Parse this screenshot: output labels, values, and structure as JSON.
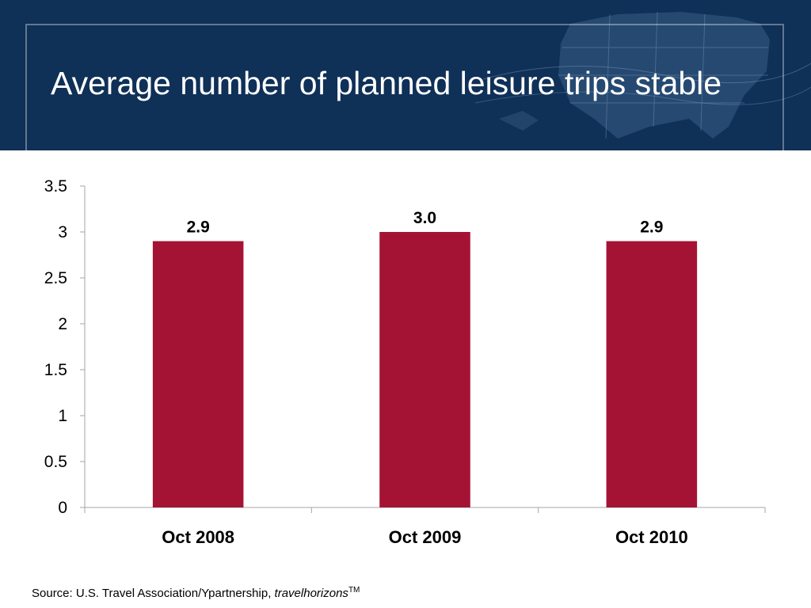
{
  "slide": {
    "title": "Average number of planned leisure trips stable",
    "source_prefix": "Source:  U.S. Travel Association/Ypartnership, ",
    "source_brand": "travelhorizons",
    "source_tm": "TM"
  },
  "colors": {
    "header_bg": "#0f3057",
    "bar": "#a51334"
  },
  "chart_data": {
    "type": "bar",
    "title": "",
    "xlabel": "",
    "ylabel": "",
    "categories": [
      "Oct 2008",
      "Oct 2009",
      "Oct 2010"
    ],
    "values": [
      2.9,
      3.0,
      2.9
    ],
    "data_labels": [
      "2.9",
      "3.0",
      "2.9"
    ],
    "ylim": [
      0,
      3.5
    ],
    "yticks": [
      0,
      0.5,
      1,
      1.5,
      2,
      2.5,
      3,
      3.5
    ],
    "ytick_labels": [
      "0",
      "0.5",
      "1",
      "1.5",
      "2",
      "2.5",
      "3",
      "3.5"
    ],
    "grid": false,
    "legend": "none"
  }
}
